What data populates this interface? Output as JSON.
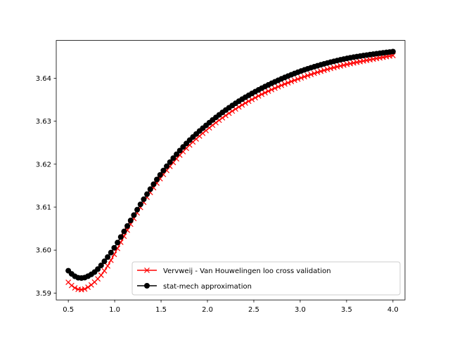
{
  "chart_data": {
    "type": "line",
    "title": "",
    "xlabel": "",
    "ylabel": "",
    "xlim": [
      0.37,
      4.13
    ],
    "ylim": [
      3.5884,
      3.6488
    ],
    "xticks": [
      0.5,
      1.0,
      1.5,
      2.0,
      2.5,
      3.0,
      3.5,
      4.0
    ],
    "xtick_labels": [
      "0.5",
      "1.0",
      "1.5",
      "2.0",
      "2.5",
      "3.0",
      "3.5",
      "4.0"
    ],
    "yticks": [
      3.59,
      3.6,
      3.61,
      3.62,
      3.63,
      3.64
    ],
    "ytick_labels": [
      "3.59",
      "3.60",
      "3.61",
      "3.62",
      "3.63",
      "3.64"
    ],
    "grid": false,
    "legend_position": "lower-right",
    "series": [
      {
        "name": "Vervweij - Van Houwelingen loo cross validation",
        "color": "#ff0000",
        "marker": "x",
        "anchors": [
          [
            0.5,
            3.5925
          ],
          [
            0.55,
            3.5915
          ],
          [
            0.6,
            3.5909
          ],
          [
            0.65,
            3.5908
          ],
          [
            0.7,
            3.5912
          ],
          [
            0.8,
            3.5929
          ],
          [
            0.9,
            3.5955
          ],
          [
            1.0,
            3.5992
          ],
          [
            1.1,
            3.6032
          ],
          [
            1.2,
            3.6071
          ],
          [
            1.3,
            3.6107
          ],
          [
            1.5,
            3.6169
          ],
          [
            1.75,
            3.6232
          ],
          [
            2.0,
            3.6281
          ],
          [
            2.25,
            3.6321
          ],
          [
            2.5,
            3.6353
          ],
          [
            2.75,
            3.6379
          ],
          [
            3.0,
            3.64
          ],
          [
            3.25,
            3.6418
          ],
          [
            3.5,
            3.6432
          ],
          [
            3.75,
            3.6443
          ],
          [
            4.0,
            3.6453
          ]
        ]
      },
      {
        "name": "stat-mech approximation",
        "color": "#000000",
        "marker": "o",
        "anchors": [
          [
            0.5,
            3.5952
          ],
          [
            0.55,
            3.5942
          ],
          [
            0.6,
            3.5936
          ],
          [
            0.65,
            3.5935
          ],
          [
            0.7,
            3.5938
          ],
          [
            0.8,
            3.5952
          ],
          [
            0.9,
            3.5977
          ],
          [
            1.0,
            3.6007
          ],
          [
            1.1,
            3.6043
          ],
          [
            1.2,
            3.6079
          ],
          [
            1.3,
            3.6114
          ],
          [
            1.5,
            3.6178
          ],
          [
            1.75,
            3.6243
          ],
          [
            2.0,
            3.6293
          ],
          [
            2.25,
            3.6334
          ],
          [
            2.5,
            3.6367
          ],
          [
            2.75,
            3.6394
          ],
          [
            3.0,
            3.6416
          ],
          [
            3.25,
            3.6433
          ],
          [
            3.5,
            3.6446
          ],
          [
            3.75,
            3.6455
          ],
          [
            4.0,
            3.6462
          ]
        ]
      }
    ]
  }
}
